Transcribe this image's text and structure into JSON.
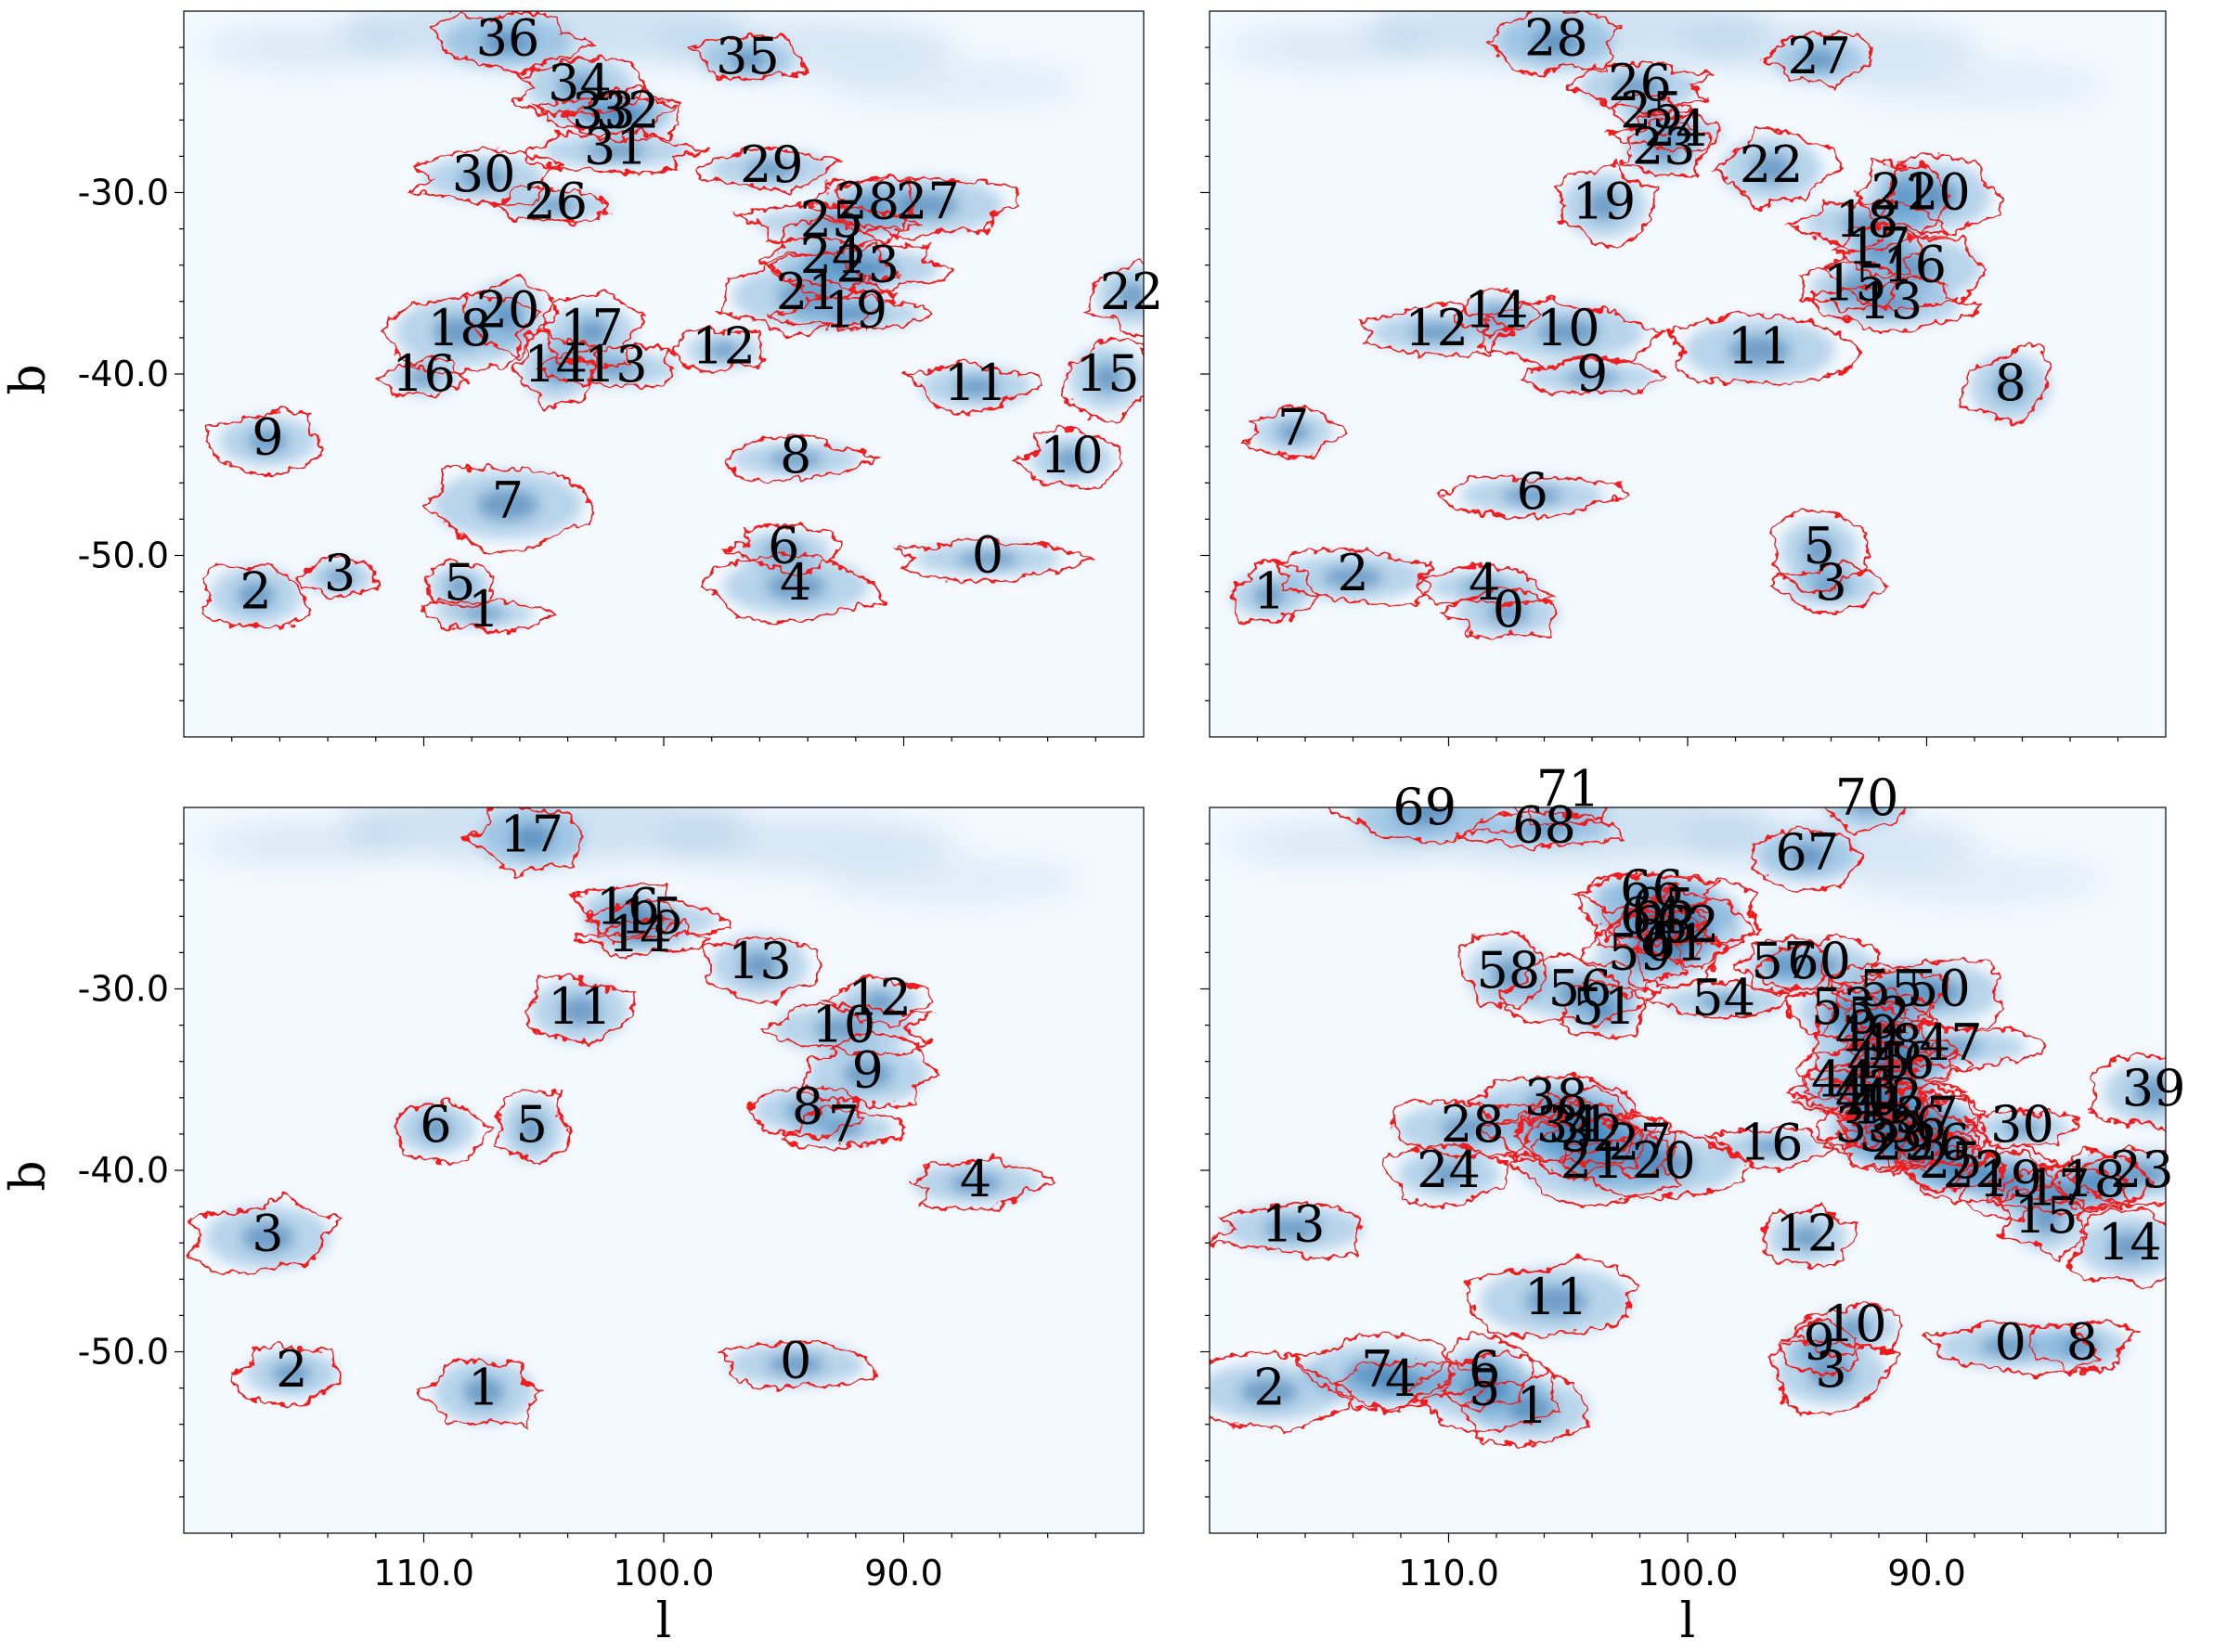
{
  "chart_data": [
    {
      "type": "map",
      "panel": "top-left",
      "xlabel": "",
      "ylabel": "b",
      "xlim": [
        120,
        80
      ],
      "ylim": [
        -60,
        -20
      ],
      "xticks": [],
      "yticks": [
        "-30.0",
        "-40.0",
        "-50.0"
      ],
      "labels": [
        {
          "text": "36",
          "l": 106.5,
          "b": -21.5
        },
        {
          "text": "35",
          "l": 96.5,
          "b": -22.5
        },
        {
          "text": "34",
          "l": 103.5,
          "b": -24.0
        },
        {
          "text": "33",
          "l": 102.5,
          "b": -25.5
        },
        {
          "text": "32",
          "l": 101.5,
          "b": -25.5
        },
        {
          "text": "31",
          "l": 102.0,
          "b": -27.5
        },
        {
          "text": "30",
          "l": 107.5,
          "b": -29.0
        },
        {
          "text": "29",
          "l": 95.5,
          "b": -28.5
        },
        {
          "text": "26",
          "l": 104.5,
          "b": -30.5
        },
        {
          "text": "28",
          "l": 91.5,
          "b": -30.5
        },
        {
          "text": "27",
          "l": 89.0,
          "b": -30.5
        },
        {
          "text": "25",
          "l": 93.0,
          "b": -31.5
        },
        {
          "text": "24",
          "l": 93.0,
          "b": -33.5
        },
        {
          "text": "23",
          "l": 91.5,
          "b": -34.0
        },
        {
          "text": "21",
          "l": 94.0,
          "b": -35.5
        },
        {
          "text": "19",
          "l": 92.0,
          "b": -36.5
        },
        {
          "text": "22",
          "l": 80.5,
          "b": -35.5
        },
        {
          "text": "20",
          "l": 106.5,
          "b": -36.5
        },
        {
          "text": "18",
          "l": 108.5,
          "b": -37.5
        },
        {
          "text": "17",
          "l": 103.0,
          "b": -37.5
        },
        {
          "text": "12",
          "l": 97.5,
          "b": -38.5
        },
        {
          "text": "16",
          "l": 110.0,
          "b": -40.0
        },
        {
          "text": "14",
          "l": 104.5,
          "b": -39.5
        },
        {
          "text": "13",
          "l": 102.0,
          "b": -39.5
        },
        {
          "text": "11",
          "l": 87.0,
          "b": -40.5
        },
        {
          "text": "15",
          "l": 81.5,
          "b": -40.0
        },
        {
          "text": "9",
          "l": 116.5,
          "b": -43.5
        },
        {
          "text": "8",
          "l": 94.5,
          "b": -44.5
        },
        {
          "text": "10",
          "l": 83.0,
          "b": -44.5
        },
        {
          "text": "7",
          "l": 106.5,
          "b": -47.0
        },
        {
          "text": "6",
          "l": 95.0,
          "b": -49.5
        },
        {
          "text": "0",
          "l": 86.5,
          "b": -50.0
        },
        {
          "text": "3",
          "l": 113.5,
          "b": -51.0
        },
        {
          "text": "5",
          "l": 108.5,
          "b": -51.5
        },
        {
          "text": "4",
          "l": 94.5,
          "b": -51.5
        },
        {
          "text": "2",
          "l": 117.0,
          "b": -52.0
        },
        {
          "text": "1",
          "l": 107.5,
          "b": -53.0
        }
      ]
    },
    {
      "type": "map",
      "panel": "top-right",
      "xlabel": "",
      "ylabel": "",
      "xlim": [
        120,
        80
      ],
      "ylim": [
        -60,
        -20
      ],
      "xticks": [],
      "yticks": [],
      "labels": [
        {
          "text": "28",
          "l": 105.5,
          "b": -21.5
        },
        {
          "text": "27",
          "l": 94.5,
          "b": -22.5
        },
        {
          "text": "26",
          "l": 102.0,
          "b": -24.0
        },
        {
          "text": "25",
          "l": 101.5,
          "b": -25.5
        },
        {
          "text": "24",
          "l": 100.5,
          "b": -26.5
        },
        {
          "text": "23",
          "l": 101.0,
          "b": -27.5
        },
        {
          "text": "22",
          "l": 96.5,
          "b": -28.5
        },
        {
          "text": "19",
          "l": 103.5,
          "b": -30.5
        },
        {
          "text": "21",
          "l": 91.0,
          "b": -30.0
        },
        {
          "text": "20",
          "l": 89.5,
          "b": -30.0
        },
        {
          "text": "18",
          "l": 92.5,
          "b": -31.5
        },
        {
          "text": "17",
          "l": 92.0,
          "b": -33.0
        },
        {
          "text": "16",
          "l": 90.5,
          "b": -34.0
        },
        {
          "text": "15",
          "l": 93.0,
          "b": -35.0
        },
        {
          "text": "13",
          "l": 91.5,
          "b": -36.0
        },
        {
          "text": "14",
          "l": 108.0,
          "b": -36.5
        },
        {
          "text": "12",
          "l": 110.5,
          "b": -37.5
        },
        {
          "text": "10",
          "l": 105.0,
          "b": -37.5
        },
        {
          "text": "11",
          "l": 97.0,
          "b": -38.5
        },
        {
          "text": "9",
          "l": 104.0,
          "b": -40.0
        },
        {
          "text": "8",
          "l": 86.5,
          "b": -40.5
        },
        {
          "text": "7",
          "l": 116.5,
          "b": -43.0
        },
        {
          "text": "6",
          "l": 106.5,
          "b": -46.5
        },
        {
          "text": "5",
          "l": 94.5,
          "b": -49.5
        },
        {
          "text": "3",
          "l": 94.0,
          "b": -51.5
        },
        {
          "text": "2",
          "l": 114.0,
          "b": -51.0
        },
        {
          "text": "4",
          "l": 108.5,
          "b": -51.5
        },
        {
          "text": "1",
          "l": 117.5,
          "b": -52.0
        },
        {
          "text": "0",
          "l": 107.5,
          "b": -53.0
        }
      ]
    },
    {
      "type": "map",
      "panel": "bottom-left",
      "xlabel": "l",
      "ylabel": "b",
      "xlim": [
        120,
        80
      ],
      "ylim": [
        -60,
        -20
      ],
      "xticks": [
        "110.0",
        "100.0",
        "90.0"
      ],
      "yticks": [
        "-30.0",
        "-40.0",
        "-50.0"
      ],
      "labels": [
        {
          "text": "17",
          "l": 105.5,
          "b": -21.5
        },
        {
          "text": "16",
          "l": 101.5,
          "b": -25.5
        },
        {
          "text": "15",
          "l": 100.5,
          "b": -26.0
        },
        {
          "text": "14",
          "l": 101.0,
          "b": -27.0
        },
        {
          "text": "13",
          "l": 96.0,
          "b": -28.5
        },
        {
          "text": "11",
          "l": 103.5,
          "b": -31.0
        },
        {
          "text": "12",
          "l": 91.0,
          "b": -30.5
        },
        {
          "text": "10",
          "l": 92.5,
          "b": -32.0
        },
        {
          "text": "9",
          "l": 91.5,
          "b": -34.5
        },
        {
          "text": "8",
          "l": 94.0,
          "b": -36.5
        },
        {
          "text": "7",
          "l": 92.5,
          "b": -37.5
        },
        {
          "text": "6",
          "l": 109.5,
          "b": -37.5
        },
        {
          "text": "5",
          "l": 105.5,
          "b": -37.5
        },
        {
          "text": "4",
          "l": 87.0,
          "b": -40.5
        },
        {
          "text": "3",
          "l": 116.5,
          "b": -43.5
        },
        {
          "text": "2",
          "l": 115.5,
          "b": -51.0
        },
        {
          "text": "1",
          "l": 107.5,
          "b": -52.0
        },
        {
          "text": "0",
          "l": 94.5,
          "b": -50.5
        }
      ]
    },
    {
      "type": "map",
      "panel": "bottom-right",
      "xlabel": "l",
      "ylabel": "",
      "xlim": [
        120,
        80
      ],
      "ylim": [
        -60,
        -20
      ],
      "xticks": [
        "110.0",
        "100.0",
        "90.0"
      ],
      "yticks": [],
      "labels": [
        {
          "text": "71",
          "l": 105.0,
          "b": -19.0
        },
        {
          "text": "70",
          "l": 92.5,
          "b": -19.5
        },
        {
          "text": "69",
          "l": 111.0,
          "b": -20.0
        },
        {
          "text": "68",
          "l": 106.0,
          "b": -21.0
        },
        {
          "text": "67",
          "l": 95.0,
          "b": -22.5
        },
        {
          "text": "66",
          "l": 101.5,
          "b": -24.5
        },
        {
          "text": "65",
          "l": 101.0,
          "b": -25.5
        },
        {
          "text": "64",
          "l": 101.5,
          "b": -26.0
        },
        {
          "text": "63",
          "l": 101.0,
          "b": -26.5
        },
        {
          "text": "62",
          "l": 100.0,
          "b": -26.5
        },
        {
          "text": "61",
          "l": 100.5,
          "b": -27.5
        },
        {
          "text": "59",
          "l": 102.0,
          "b": -28.0
        },
        {
          "text": "58",
          "l": 107.5,
          "b": -29.0
        },
        {
          "text": "57",
          "l": 96.0,
          "b": -28.5
        },
        {
          "text": "60",
          "l": 94.5,
          "b": -28.5
        },
        {
          "text": "56",
          "l": 104.5,
          "b": -30.0
        },
        {
          "text": "51",
          "l": 103.5,
          "b": -31.0
        },
        {
          "text": "54",
          "l": 98.5,
          "b": -30.5
        },
        {
          "text": "55",
          "l": 91.5,
          "b": -30.0
        },
        {
          "text": "50",
          "l": 89.5,
          "b": -30.0
        },
        {
          "text": "53",
          "l": 93.5,
          "b": -31.0
        },
        {
          "text": "52",
          "l": 92.0,
          "b": -31.5
        },
        {
          "text": "49",
          "l": 92.5,
          "b": -32.5
        },
        {
          "text": "48",
          "l": 91.5,
          "b": -33.0
        },
        {
          "text": "47",
          "l": 89.0,
          "b": -33.0
        },
        {
          "text": "46",
          "l": 91.0,
          "b": -34.0
        },
        {
          "text": "45",
          "l": 92.0,
          "b": -34.0
        },
        {
          "text": "44",
          "l": 93.5,
          "b": -35.0
        },
        {
          "text": "43",
          "l": 92.5,
          "b": -35.5
        },
        {
          "text": "42",
          "l": 91.5,
          "b": -36.0
        },
        {
          "text": "41",
          "l": 92.0,
          "b": -36.5
        },
        {
          "text": "40",
          "l": 92.5,
          "b": -36.0
        },
        {
          "text": "39",
          "l": 80.5,
          "b": -35.5
        },
        {
          "text": "38",
          "l": 105.5,
          "b": -36.0
        },
        {
          "text": "37",
          "l": 90.0,
          "b": -37.0
        },
        {
          "text": "36",
          "l": 90.5,
          "b": -37.5
        },
        {
          "text": "35",
          "l": 92.5,
          "b": -37.5
        },
        {
          "text": "34",
          "l": 105.0,
          "b": -37.5
        },
        {
          "text": "33",
          "l": 91.5,
          "b": -38.0
        },
        {
          "text": "32",
          "l": 104.0,
          "b": -38.0
        },
        {
          "text": "31",
          "l": 104.5,
          "b": -37.5
        },
        {
          "text": "30",
          "l": 86.0,
          "b": -37.5
        },
        {
          "text": "29",
          "l": 91.0,
          "b": -38.5
        },
        {
          "text": "28",
          "l": 109.0,
          "b": -37.5
        },
        {
          "text": "27",
          "l": 102.0,
          "b": -38.5
        },
        {
          "text": "26",
          "l": 89.5,
          "b": -38.5
        },
        {
          "text": "25",
          "l": 89.0,
          "b": -39.5
        },
        {
          "text": "24",
          "l": 110.0,
          "b": -40.0
        },
        {
          "text": "23",
          "l": 81.0,
          "b": -40.0
        },
        {
          "text": "22",
          "l": 88.0,
          "b": -40.0
        },
        {
          "text": "21",
          "l": 104.0,
          "b": -39.5
        },
        {
          "text": "20",
          "l": 101.0,
          "b": -39.5
        },
        {
          "text": "19",
          "l": 86.5,
          "b": -40.5
        },
        {
          "text": "18",
          "l": 83.0,
          "b": -40.5
        },
        {
          "text": "17",
          "l": 84.5,
          "b": -41.0
        },
        {
          "text": "16",
          "l": 96.5,
          "b": -38.5
        },
        {
          "text": "15",
          "l": 85.0,
          "b": -42.5
        },
        {
          "text": "14",
          "l": 81.5,
          "b": -44.0
        },
        {
          "text": "13",
          "l": 116.5,
          "b": -43.0
        },
        {
          "text": "12",
          "l": 95.0,
          "b": -43.5
        },
        {
          "text": "11",
          "l": 105.5,
          "b": -47.0
        },
        {
          "text": "10",
          "l": 93.0,
          "b": -48.5
        },
        {
          "text": "9",
          "l": 94.5,
          "b": -49.5
        },
        {
          "text": "0",
          "l": 86.5,
          "b": -49.5
        },
        {
          "text": "8",
          "l": 83.5,
          "b": -49.5
        },
        {
          "text": "3",
          "l": 94.0,
          "b": -51.0
        },
        {
          "text": "7",
          "l": 113.0,
          "b": -51.0
        },
        {
          "text": "4",
          "l": 112.0,
          "b": -51.5
        },
        {
          "text": "6",
          "l": 108.5,
          "b": -51.0
        },
        {
          "text": "5",
          "l": 108.5,
          "b": -52.0
        },
        {
          "text": "2",
          "l": 117.5,
          "b": -52.0
        },
        {
          "text": "1",
          "l": 106.5,
          "b": -53.0
        }
      ]
    }
  ]
}
